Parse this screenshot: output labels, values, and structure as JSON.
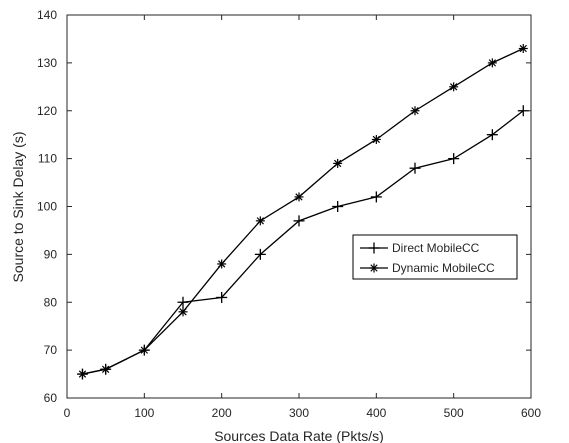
{
  "chart_data": {
    "type": "line",
    "title": "",
    "xlabel": "Sources Data Rate (Pkts/s)",
    "ylabel": "Source to Sink Delay (s)",
    "xlim": [
      0,
      600
    ],
    "ylim": [
      60,
      140
    ],
    "xticks": [
      0,
      100,
      200,
      300,
      400,
      500,
      600
    ],
    "yticks": [
      60,
      70,
      80,
      90,
      100,
      110,
      120,
      130,
      140
    ],
    "grid": false,
    "legend_position": "right-center",
    "series": [
      {
        "name": "Direct MobileCC",
        "marker": "plus",
        "color": "#000000",
        "x": [
          20,
          50,
          100,
          150,
          200,
          250,
          300,
          350,
          400,
          450,
          500,
          550,
          590
        ],
        "y": [
          65,
          66,
          70,
          80,
          81,
          90,
          97,
          100,
          102,
          108,
          110,
          115,
          120
        ]
      },
      {
        "name": "Dynamic MobileCC",
        "marker": "asterisk",
        "color": "#000000",
        "x": [
          20,
          50,
          100,
          150,
          200,
          250,
          300,
          350,
          400,
          450,
          500,
          550,
          590
        ],
        "y": [
          65,
          66,
          70,
          78,
          88,
          97,
          102,
          109,
          114,
          120,
          125,
          130,
          133
        ]
      }
    ]
  }
}
